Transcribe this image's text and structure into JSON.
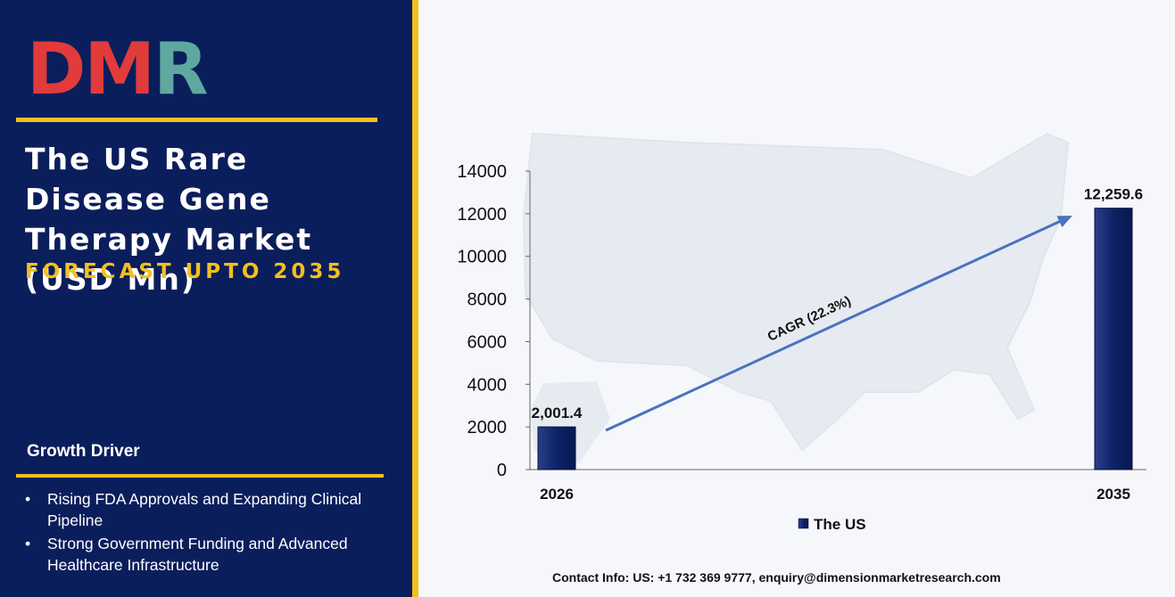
{
  "brand": {
    "logo_text_part1": "DM",
    "logo_text_part2": "R"
  },
  "heading": {
    "title": "The US Rare Disease Gene Therapy Market (USD Mn)",
    "subtitle": "FORECAST UPTO 2035"
  },
  "growth_driver": {
    "heading": "Growth Driver",
    "items": [
      "Rising FDA Approvals and Expanding Clinical Pipeline",
      "Strong Government Funding and Advanced Healthcare Infrastructure"
    ]
  },
  "contact": "Contact Info: US: +1 732 369 9777, enquiry@dimensionmarketresearch.com",
  "colors": {
    "panel": "#0b1e5c",
    "accent": "#f2c01e",
    "bar": "#0d2266",
    "arrow": "#4a72c0",
    "logo_red": "#e23b3b",
    "logo_teal": "#5fa8a0"
  },
  "chart_data": {
    "type": "bar",
    "categories": [
      "2026",
      "2035"
    ],
    "series": [
      {
        "name": "The US",
        "values": [
          2001.4,
          12259.6
        ]
      }
    ],
    "data_labels": [
      "2,001.4",
      "12,259.6"
    ],
    "yticks": [
      0,
      2000,
      4000,
      6000,
      8000,
      10000,
      12000,
      14000
    ],
    "ylim": [
      0,
      14000
    ],
    "annotation": "CAGR (22.3%)",
    "legend_position": "bottom",
    "grid": false
  }
}
